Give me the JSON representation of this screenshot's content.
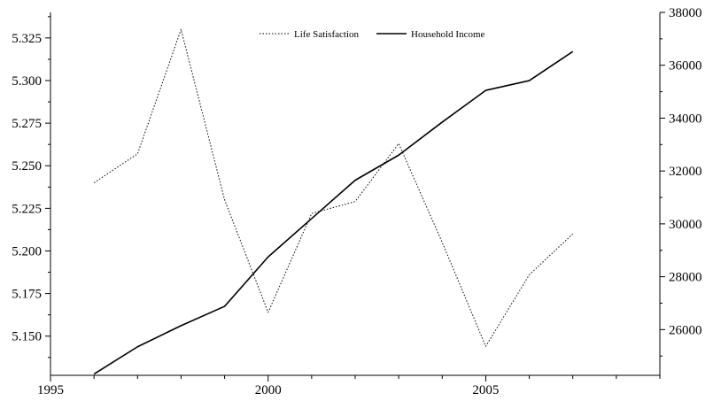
{
  "chart_data": {
    "type": "line",
    "x": [
      1996,
      1997,
      1998,
      1999,
      2000,
      2001,
      2002,
      2003,
      2004,
      2005,
      2006,
      2007
    ],
    "xlim": [
      1995,
      2009
    ],
    "x_ticks": [
      1995,
      2000,
      2005
    ],
    "y_left": {
      "lim": [
        5.127,
        5.34
      ],
      "ticks": [
        5.15,
        5.175,
        5.2,
        5.225,
        5.25,
        5.275,
        5.3,
        5.325
      ],
      "tick_labels": [
        "5.150",
        "5.175",
        "5.200",
        "5.225",
        "5.250",
        "5.275",
        "5.300",
        "5.325"
      ]
    },
    "y_right": {
      "lim": [
        24270,
        38000
      ],
      "ticks": [
        26000,
        28000,
        30000,
        32000,
        34000,
        36000,
        38000
      ],
      "tick_labels": [
        "26000",
        "28000",
        "30000",
        "32000",
        "34000",
        "36000",
        "38000"
      ]
    },
    "series": [
      {
        "name": "Life Satisfaction",
        "axis": "left",
        "style": "dotted",
        "color": "#000000",
        "values": [
          5.24,
          5.257,
          5.33,
          5.23,
          5.164,
          5.222,
          5.229,
          5.263,
          5.205,
          5.144,
          5.186,
          5.21
        ]
      },
      {
        "name": "Household Income",
        "axis": "right",
        "style": "solid",
        "color": "#000000",
        "values": [
          24320,
          25350,
          26150,
          26880,
          28750,
          30200,
          31650,
          32600,
          33850,
          35050,
          35420,
          36520
        ]
      }
    ],
    "legend_position": "top-center",
    "grid": false
  }
}
